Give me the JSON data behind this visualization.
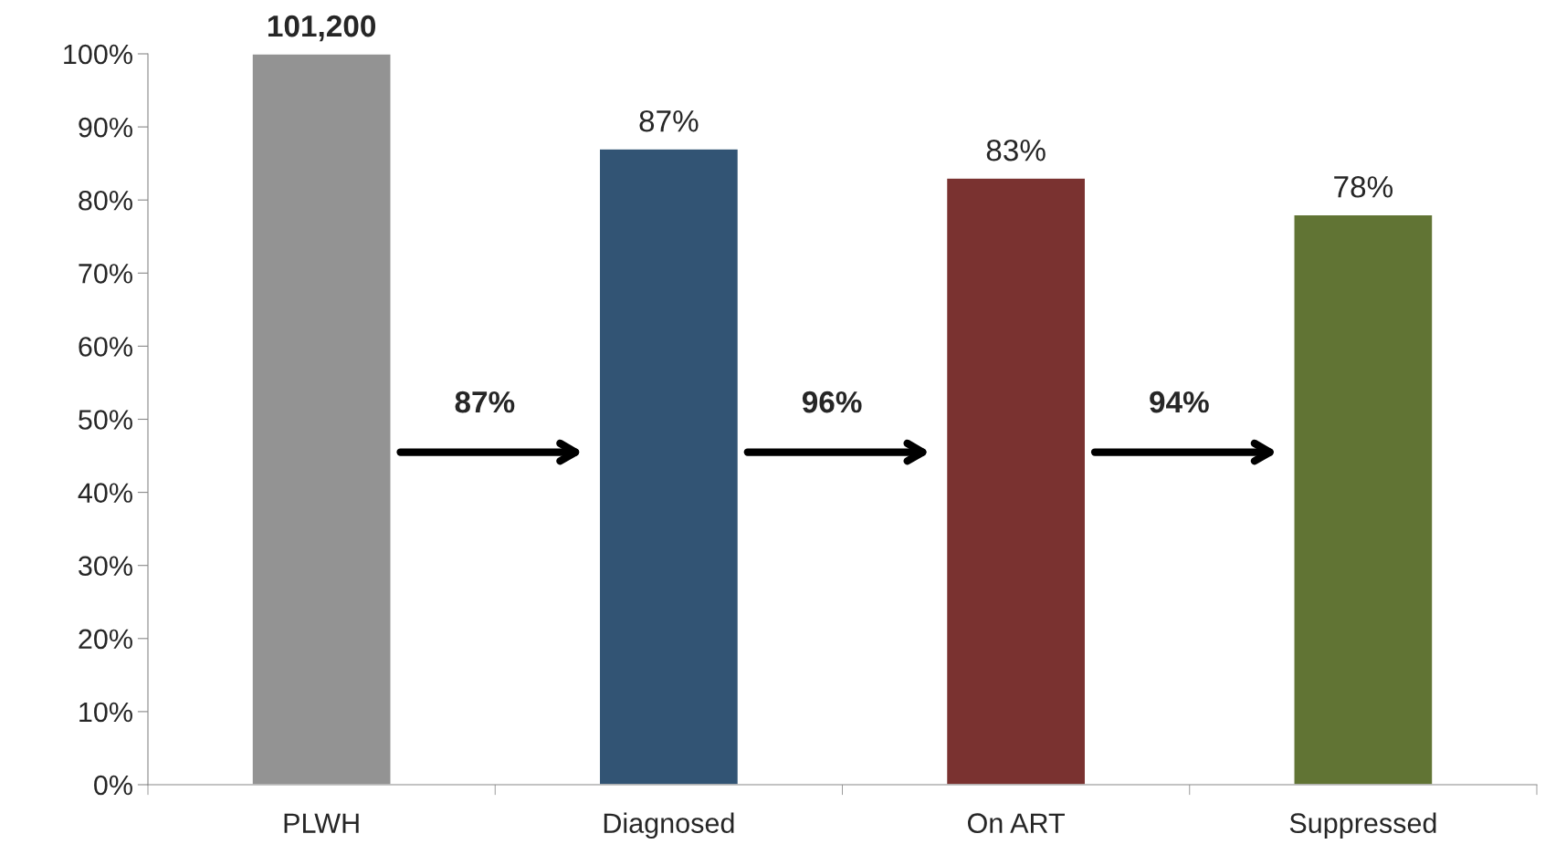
{
  "chart_data": {
    "type": "bar",
    "categories": [
      "PLWH",
      "Diagnosed",
      "On ART",
      "Suppressed"
    ],
    "values": [
      100,
      87,
      83,
      78
    ],
    "colors": [
      "#939393",
      "#325474",
      "#7a3230",
      "#617434"
    ],
    "value_labels": [
      null,
      "87%",
      "83%",
      "78%"
    ],
    "ylim": [
      0,
      100
    ],
    "yticks": [
      {
        "value": 0,
        "label": "0%"
      },
      {
        "value": 10,
        "label": "10%"
      },
      {
        "value": 20,
        "label": "20%"
      },
      {
        "value": 30,
        "label": "30%"
      },
      {
        "value": 40,
        "label": "40%"
      },
      {
        "value": 50,
        "label": "50%"
      },
      {
        "value": 60,
        "label": "60%"
      },
      {
        "value": 70,
        "label": "70%"
      },
      {
        "value": 80,
        "label": "80%"
      },
      {
        "value": 90,
        "label": "90%"
      },
      {
        "value": 100,
        "label": "100%"
      }
    ],
    "annotations": [
      {
        "text": "101,200",
        "x": "PLWH",
        "y": 100
      },
      "87%",
      "96%",
      "94%"
    ],
    "grid": false,
    "legend": false
  }
}
